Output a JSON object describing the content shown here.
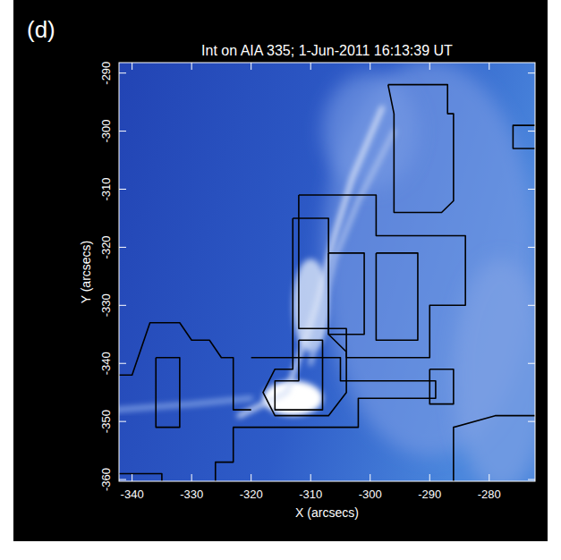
{
  "chart_data": {
    "type": "image",
    "panel_label": "(d)",
    "title": "Int on AIA 335;  1-Jun-2011 16:13:39 UT",
    "x_label": "X (arcsecs)",
    "y_label": "Y (arcsecs)",
    "xlim": [
      -342.2,
      -272.3
    ],
    "ylim": [
      -360.3,
      -288.2
    ],
    "xticks": [
      -340,
      -330,
      -320,
      -310,
      -300,
      -290,
      -280
    ],
    "yticks": [
      -360,
      -350,
      -340,
      -330,
      -320,
      -310,
      -300,
      -290
    ],
    "color": "#000000",
    "blobs": [
      {
        "x": -290,
        "y": -322,
        "rx": 18,
        "ry": 34,
        "intensity": 0.3
      },
      {
        "x": -278,
        "y": -342,
        "rx": 8,
        "ry": 20,
        "intensity": 0.35
      },
      {
        "x": -300,
        "y": -300,
        "rx": 8,
        "ry": 10,
        "intensity": 0.3
      },
      {
        "x": -310,
        "y": -330,
        "rx": 3,
        "ry": 8,
        "intensity": 0.75
      },
      {
        "x": -313,
        "y": -346,
        "rx": 5,
        "ry": 3,
        "intensity": 1
      }
    ],
    "strands": [
      {
        "x": [
          -322,
          -314,
          -309,
          -306,
          -303,
          -298
        ],
        "y": [
          -349,
          -345,
          -330,
          -318,
          -308,
          -296
        ],
        "intensity": 0.8
      },
      {
        "x": [
          -310,
          -306,
          -302,
          -296
        ],
        "y": [
          -340,
          -322,
          -312,
          -300
        ],
        "intensity": 0.55
      },
      {
        "x": [
          -343,
          -330,
          -320
        ],
        "y": [
          -348,
          -347,
          -346
        ],
        "intensity": 0.35
      }
    ],
    "contours": [
      {
        "x": [
          -313,
          -307,
          -307,
          -304,
          -304,
          -307,
          -316,
          -318,
          -316,
          -313,
          -313
        ],
        "y": [
          -315,
          -315,
          -335,
          -338,
          -345,
          -349,
          -349,
          -345,
          -341,
          -341,
          -315
        ]
      },
      {
        "x": [
          -312,
          -308,
          -308,
          -316,
          -316,
          -312,
          -312
        ],
        "y": [
          -336,
          -336,
          -348,
          -348,
          -343,
          -343,
          -336
        ]
      },
      {
        "x": [
          -297,
          -287,
          -287,
          -286,
          -286,
          -288,
          -296,
          -296,
          -297
        ],
        "y": [
          -292,
          -292,
          -297,
          -297,
          -312,
          -314,
          -314,
          -297,
          -292
        ]
      },
      {
        "x": [
          -312,
          -299,
          -299,
          -284,
          -284,
          -290,
          -290,
          -304,
          -304,
          -312,
          -312
        ],
        "y": [
          -311,
          -311,
          -318,
          -318,
          -330,
          -330,
          -339,
          -339,
          -334,
          -334,
          -311
        ]
      },
      {
        "x": [
          -307,
          -301,
          -301,
          -307,
          -307
        ],
        "y": [
          -321,
          -321,
          -335,
          -335,
          -321
        ]
      },
      {
        "x": [
          -299,
          -292,
          -292,
          -299,
          -299
        ],
        "y": [
          -321,
          -321,
          -336,
          -336,
          -321
        ]
      },
      {
        "x": [
          -320,
          -305,
          -305,
          -289,
          -289,
          -302,
          -302,
          -323,
          -323,
          -326,
          -326
        ],
        "y": [
          -339,
          -339,
          -343,
          -343,
          -346,
          -346,
          -351,
          -351,
          -357,
          -357,
          -361
        ]
      },
      {
        "x": [
          -343,
          -340,
          -337,
          -332,
          -330,
          -327,
          -325,
          -323,
          -323,
          -320
        ],
        "y": [
          -342,
          -342,
          -333,
          -333,
          -336,
          -336,
          -339,
          -339,
          -348,
          -348
        ]
      },
      {
        "x": [
          -336,
          -332,
          -332,
          -336,
          -336
        ],
        "y": [
          -339,
          -339,
          -351,
          -351,
          -339
        ]
      },
      {
        "x": [
          -290,
          -286,
          -286,
          -290,
          -290
        ],
        "y": [
          -341,
          -341,
          -347,
          -347,
          -341
        ]
      },
      {
        "x": [
          -286,
          -286,
          -279,
          -272
        ],
        "y": [
          -361,
          -351,
          -349,
          -349
        ]
      },
      {
        "x": [
          -272,
          -276,
          -276,
          -272
        ],
        "y": [
          -299,
          -299,
          -303,
          -303
        ]
      },
      {
        "x": [
          -343,
          -335,
          -335
        ],
        "y": [
          -359,
          -359,
          -361
        ]
      }
    ]
  }
}
